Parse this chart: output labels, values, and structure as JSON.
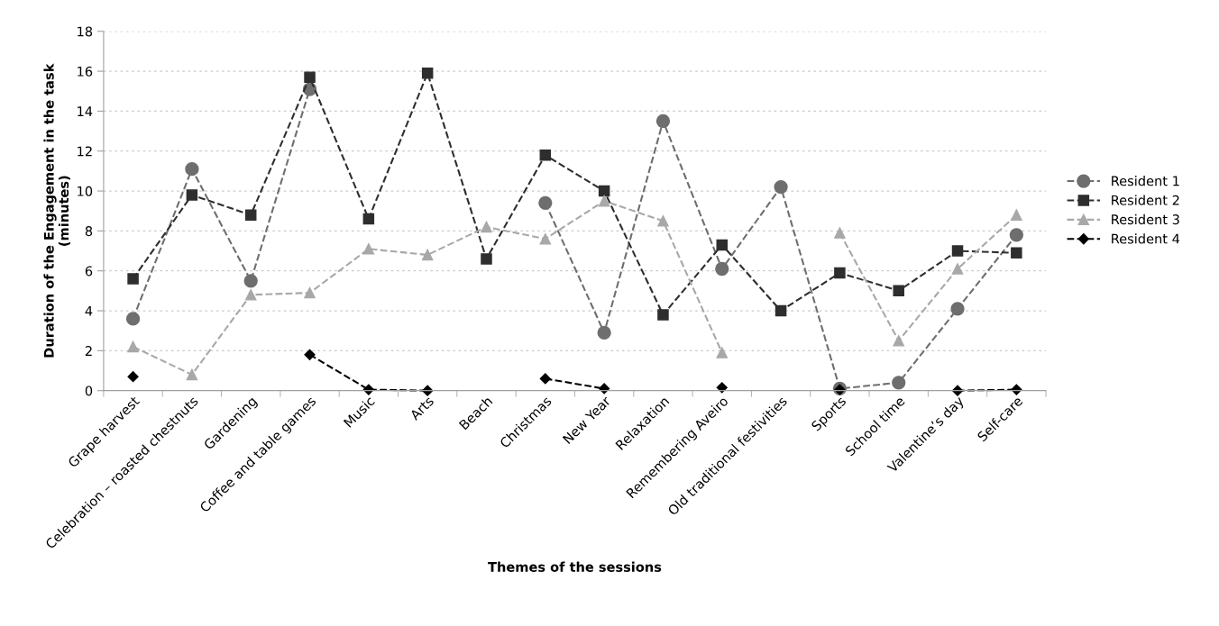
{
  "chart_data": {
    "type": "line",
    "xlabel": "Themes of the sessions",
    "ylabel": "Duration of the Engagement in the task\n(minutes)",
    "categories": [
      "Grape harvest",
      "Celebration – roasted chestnuts",
      "Gardening",
      "Coffee and table games",
      "Music",
      "Arts",
      "Beach",
      "Christmas",
      "New Year",
      "Relaxation",
      "Remembering Aveiro",
      "Old traditional festivities",
      "Sports",
      "School time",
      "Valentine’s day",
      "Self-care"
    ],
    "series": [
      {
        "name": "Resident 1",
        "color": "#6e6e6e",
        "marker": "circle",
        "values": [
          3.6,
          11.1,
          5.5,
          15.1,
          null,
          null,
          null,
          9.4,
          2.9,
          13.5,
          6.1,
          10.2,
          0.1,
          0.4,
          4.1,
          7.8
        ]
      },
      {
        "name": "Resident 2",
        "color": "#2e2e2e",
        "marker": "square",
        "values": [
          5.6,
          9.8,
          8.8,
          15.7,
          8.6,
          15.9,
          6.6,
          11.8,
          10.0,
          3.8,
          7.3,
          4.0,
          5.9,
          5.0,
          7.0,
          6.9
        ]
      },
      {
        "name": "Resident 3",
        "color": "#a8a8a8",
        "marker": "triangle",
        "values": [
          2.2,
          0.8,
          4.8,
          4.9,
          7.1,
          6.8,
          8.2,
          7.6,
          9.5,
          8.5,
          1.9,
          null,
          7.9,
          2.5,
          6.1,
          8.8
        ]
      },
      {
        "name": "Resident 4",
        "color": "#000000",
        "marker": "diamond",
        "values": [
          0.7,
          null,
          null,
          1.8,
          0.05,
          0.0,
          null,
          0.6,
          0.1,
          null,
          0.15,
          null,
          0.05,
          null,
          0.0,
          0.05
        ]
      }
    ],
    "ylim": [
      0,
      18
    ],
    "yticks": [
      0,
      2,
      4,
      6,
      8,
      10,
      12,
      14,
      16,
      18
    ],
    "grid": "y",
    "legend": "right",
    "line_style": "dashed"
  }
}
